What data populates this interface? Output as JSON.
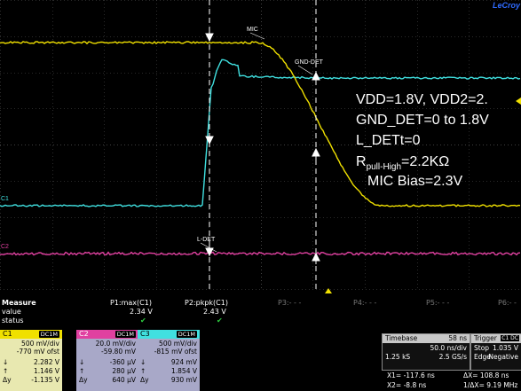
{
  "brand": "LeCroy",
  "traces": {
    "mic_label": "MIC",
    "gnd_label": "GND-DET",
    "ldet_label": "L-DET",
    "c1_marker": "C1",
    "c2_marker": "C2"
  },
  "annotation": {
    "line1": "VDD=1.8V, VDD2=2.",
    "line2": "GND_DET=0 to 1.8V",
    "line3": "L_DETt=0",
    "line4_pre": "R",
    "line4_sub": "pull-High",
    "line4_post": "=2.2KΩ",
    "line5": "MIC Bias=2.3V"
  },
  "measure": {
    "title": "Measure",
    "row_value": "value",
    "row_status": "status",
    "p1_label": "P1:max(C1)",
    "p1_value": "2.34 V",
    "p2_label": "P2:pkpk(C1)",
    "p2_value": "2.43 V",
    "p3_label": "P3:- - -",
    "p4_label": "P4:- - -",
    "p5_label": "P5:- - -",
    "p6_label": "P6:- -"
  },
  "channels": [
    {
      "name": "C1",
      "coupling": "DC1M",
      "color": "#f0e000",
      "text": "#000000",
      "vdiv": "500 mV/div",
      "offset": "-770 mV ofst",
      "r1_sym": "↓",
      "r1": "2.282 V",
      "r2_sym": "↑",
      "r2": "1.146 V",
      "r3_sym": "Δy",
      "r3": "-1.135 V"
    },
    {
      "name": "C2",
      "coupling": "DC1M",
      "color": "#e040a0",
      "text": "#ffffff",
      "vdiv": "20.0 mV/div",
      "offset": "-59.80 mV",
      "r1_sym": "↓",
      "r1": "-360 µV",
      "r2_sym": "↑",
      "r2": "280 µV",
      "r3_sym": "Δy",
      "r3": "640 µV"
    },
    {
      "name": "C3",
      "coupling": "DC1M",
      "color": "#40e0e0",
      "text": "#000000",
      "vdiv": "500 mV/div",
      "offset": "-815 mV ofst",
      "r1_sym": "↓",
      "r1": "924 mV",
      "r2_sym": "↑",
      "r2": "1.854 V",
      "r3_sym": "Δy",
      "r3": "930 mV"
    }
  ],
  "timebase": {
    "title": "Timebase",
    "delay": "58 ns",
    "tdiv": "50.0 ns/div",
    "samples": "1.25 kS",
    "rate": "2.5 GS/s"
  },
  "trigger": {
    "title": "Trigger",
    "badge": "C1 DC",
    "mode": "Stop",
    "level": "1.035 V",
    "type": "Edge",
    "slope": "Negative"
  },
  "cursors": {
    "x1": "X1= -117.6 ns",
    "dx": "ΔX=  108.8 ns",
    "x2": "X2=   -8.8 ns",
    "inv": "1/ΔX=  9.19 MHz"
  },
  "colors": {
    "grid": "#555555",
    "c1": "#f0e000",
    "c2": "#e040a0",
    "c3": "#40e0e0"
  }
}
